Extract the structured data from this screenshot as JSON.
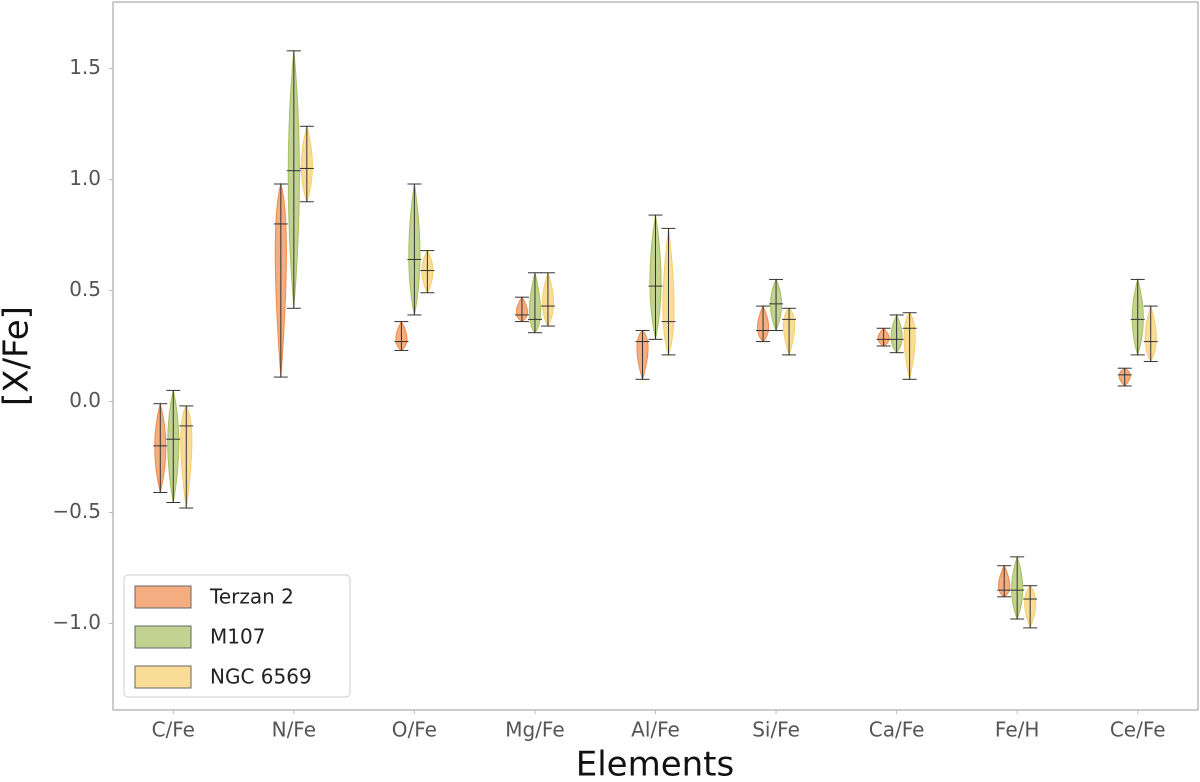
{
  "chart_data": {
    "type": "violin",
    "x_label": "Elements",
    "y_label": "[X/Fe]",
    "categories": [
      "C/Fe",
      "N/Fe",
      "O/Fe",
      "Mg/Fe",
      "Al/Fe",
      "Si/Fe",
      "Ca/Fe",
      "Fe/H",
      "Ce/Fe"
    ],
    "series": [
      {
        "name": "Terzan 2",
        "color": "#f08a4b",
        "min": [
          -0.41,
          0.11,
          0.23,
          0.36,
          0.1,
          0.27,
          0.25,
          -0.88,
          0.07
        ],
        "median": [
          -0.2,
          0.8,
          0.27,
          0.39,
          0.27,
          0.32,
          0.28,
          -0.85,
          0.12
        ],
        "max": [
          -0.01,
          0.98,
          0.36,
          0.47,
          0.32,
          0.43,
          0.33,
          -0.74,
          0.15
        ]
      },
      {
        "name": "M107",
        "color": "#a8bf62",
        "min": [
          -0.455,
          0.42,
          0.39,
          0.31,
          0.28,
          0.32,
          0.22,
          -0.98,
          0.21
        ],
        "median": [
          -0.17,
          1.04,
          0.64,
          0.37,
          0.52,
          0.44,
          0.28,
          -0.85,
          0.37
        ],
        "max": [
          0.05,
          1.58,
          0.98,
          0.58,
          0.84,
          0.55,
          0.39,
          -0.7,
          0.55
        ]
      },
      {
        "name": "NGC 6569",
        "color": "#f6cf6a",
        "min": [
          -0.48,
          0.9,
          0.49,
          0.34,
          0.21,
          0.21,
          0.1,
          -1.02,
          0.18
        ],
        "median": [
          -0.11,
          1.05,
          0.59,
          0.43,
          0.36,
          0.37,
          0.33,
          -0.89,
          0.27
        ],
        "max": [
          -0.02,
          1.24,
          0.68,
          0.58,
          0.78,
          0.42,
          0.4,
          -0.83,
          0.43
        ]
      }
    ],
    "ylim": [
      -1.39,
      1.8
    ],
    "yticks": [
      {
        "value": -1.0,
        "label": "−1.0"
      },
      {
        "value": -0.5,
        "label": "−0.5"
      },
      {
        "value": 0.0,
        "label": "0.0"
      },
      0.5,
      {
        "value": 1.0,
        "label": "1.0"
      },
      1.5
    ],
    "grid": false,
    "legend": "lower left"
  }
}
